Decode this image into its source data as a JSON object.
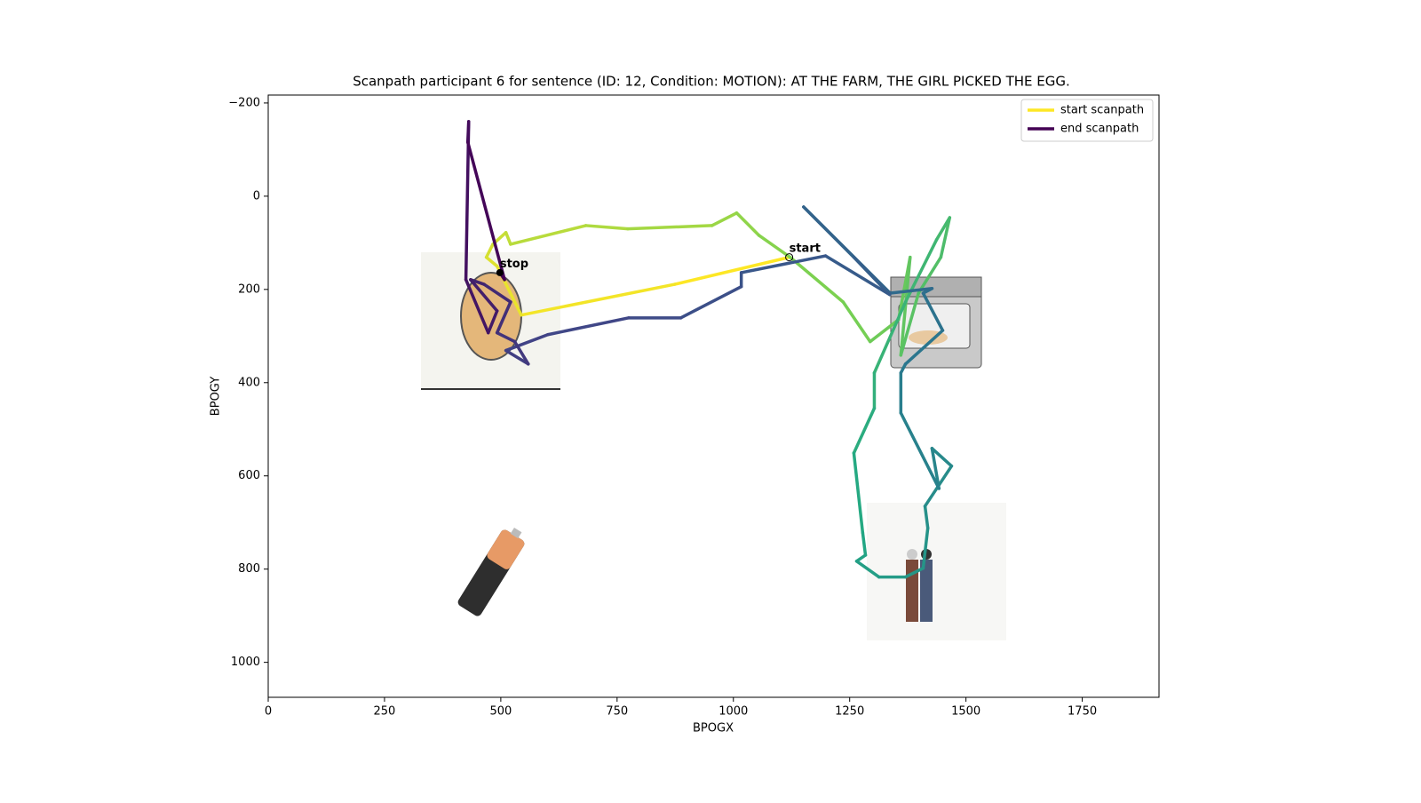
{
  "chart_data": {
    "type": "scanpath",
    "title": "Scanpath participant 6 for sentence (ID: 12, Condition: MOTION):  AT THE FARM, THE GIRL PICKED THE EGG.",
    "x_label": "BPOGX",
    "y_label": "BPOGY",
    "xlim": [
      0,
      1915
    ],
    "ylim": [
      1075,
      -217
    ],
    "xticks": [
      0,
      250,
      500,
      750,
      1000,
      1250,
      1500,
      1750
    ],
    "yticks": [
      {
        "value": -200,
        "label": "−200"
      },
      0,
      200,
      400,
      600,
      800,
      1000
    ],
    "legend": [
      {
        "name": "start scanpath",
        "color": "#fde725"
      },
      {
        "name": "end scanpath",
        "color": "#440154"
      }
    ],
    "legend_position": "upper right",
    "colormap": [
      "#fde725",
      "#7ad151",
      "#22a884",
      "#2a788e",
      "#414487",
      "#440154"
    ],
    "start_label": "start",
    "stop_label": "stop",
    "x": [
      1120,
      874,
      544,
      492,
      469,
      483,
      511,
      521,
      683,
      773,
      954,
      1007,
      1055,
      1122,
      1236,
      1294,
      1355,
      1380,
      1360,
      1398,
      1446,
      1465,
      1437,
      1370,
      1303,
      1303,
      1259,
      1278,
      1284,
      1265,
      1313,
      1370,
      1408,
      1418,
      1412,
      1469,
      1427,
      1442,
      1360,
      1360,
      1370,
      1450,
      1408,
      1427,
      1337,
      1151,
      1259,
      1336,
      1198,
      1017,
      1017,
      887,
      775,
      601,
      511,
      559,
      530,
      492,
      521,
      464,
      435,
      492,
      473,
      425,
      431,
      429,
      508,
      498
    ],
    "y": [
      131,
      189,
      255,
      150,
      131,
      103,
      78,
      103,
      63,
      70,
      63,
      36,
      84,
      131,
      227,
      312,
      265,
      131,
      341,
      208,
      131,
      46,
      93,
      227,
      379,
      455,
      551,
      722,
      770,
      783,
      817,
      817,
      798,
      712,
      665,
      579,
      541,
      627,
      465,
      379,
      360,
      288,
      208,
      198,
      208,
      23,
      131,
      211,
      128,
      164,
      194,
      261,
      261,
      297,
      331,
      360,
      312,
      293,
      227,
      189,
      179,
      246,
      293,
      179,
      -160,
      -116,
      179,
      164
    ]
  }
}
